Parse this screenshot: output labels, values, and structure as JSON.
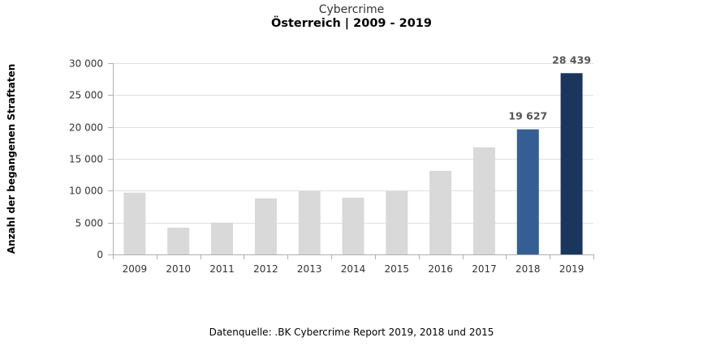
{
  "chart_data": {
    "type": "bar",
    "title": "Cybercrime",
    "subtitle": "Österreich | 2009 - 2019",
    "ylabel": "Anzahl der begangenen Straftaten",
    "xlabel": "",
    "source": "Datenquelle: .BK Cybercrime Report 2019, 2018 und 2015",
    "categories": [
      "2009",
      "2010",
      "2011",
      "2012",
      "2013",
      "2014",
      "2015",
      "2016",
      "2017",
      "2018",
      "2019"
    ],
    "values": [
      9700,
      4200,
      5000,
      8800,
      10000,
      8900,
      10000,
      13100,
      16800,
      19627,
      28439
    ],
    "data_labels": [
      "",
      "",
      "",
      "",
      "",
      "",
      "",
      "",
      "",
      "19 627",
      "28 439"
    ],
    "bar_colors": [
      "#d9d9d9",
      "#d9d9d9",
      "#d9d9d9",
      "#d9d9d9",
      "#d9d9d9",
      "#d9d9d9",
      "#d9d9d9",
      "#d9d9d9",
      "#d9d9d9",
      "#355f94",
      "#1b365d"
    ],
    "ylim": [
      0,
      30000
    ],
    "yticks": [
      0,
      5000,
      10000,
      15000,
      20000,
      25000,
      30000
    ],
    "ytick_labels": [
      "0",
      "5 000",
      "10 000",
      "15 000",
      "20 000",
      "25 000",
      "30 000"
    ],
    "grid": true,
    "legend": "none"
  }
}
